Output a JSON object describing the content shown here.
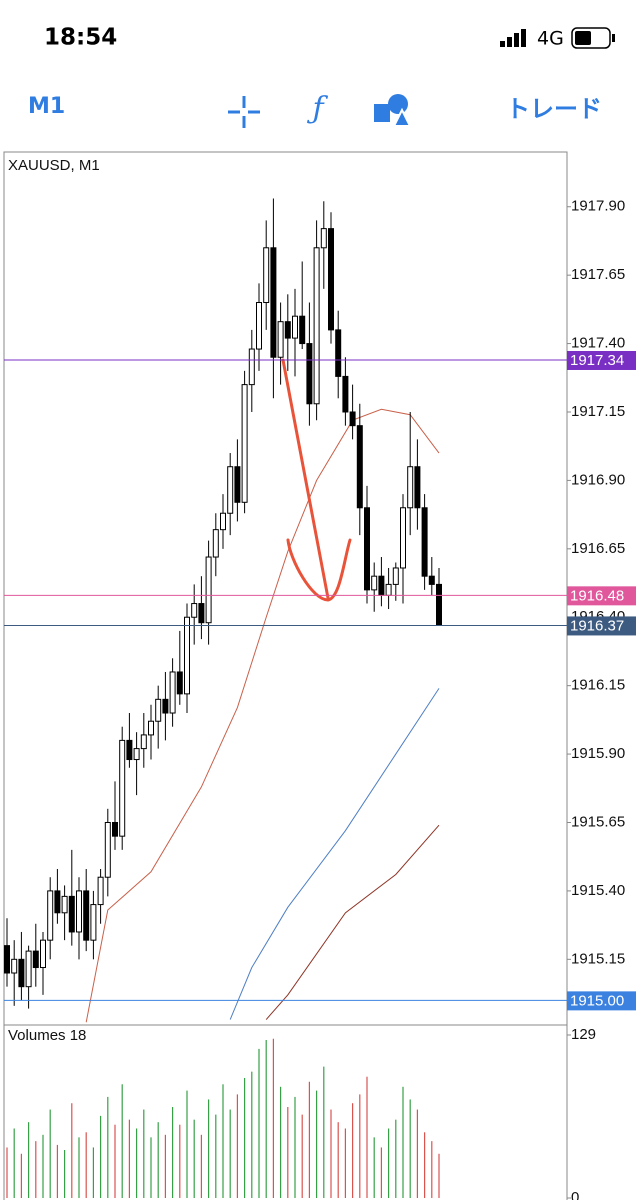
{
  "status_bar": {
    "time": "18:54",
    "network": "4G"
  },
  "toolbar": {
    "timeframe": "M1",
    "trade": "トレード"
  },
  "chart_data": {
    "type": "candlestick",
    "title": "XAUUSD, M1",
    "open": [
      1915.2,
      1915.1,
      1915.15,
      1915.05,
      1915.18,
      1915.12,
      1915.22,
      1915.4,
      1915.32,
      1915.38,
      1915.25,
      1915.4,
      1915.22,
      1915.35,
      1915.45,
      1915.65,
      1915.6,
      1915.95,
      1915.88,
      1915.92,
      1915.97,
      1916.02,
      1916.1,
      1916.05,
      1916.2,
      1916.12,
      1916.4,
      1916.45,
      1916.38,
      1916.62,
      1916.72,
      1916.78,
      1916.95,
      1916.82,
      1917.25,
      1917.38,
      1917.55,
      1917.75,
      1917.35,
      1917.48,
      1917.42,
      1917.5,
      1917.4,
      1917.18,
      1917.75,
      1917.82,
      1917.45,
      1917.28,
      1917.15,
      1917.1,
      1916.8,
      1916.5,
      1916.55,
      1916.48,
      1916.52,
      1916.58,
      1916.8,
      1916.95,
      1916.8,
      1916.55,
      1916.52
    ],
    "high": [
      1915.3,
      1915.22,
      1915.25,
      1915.2,
      1915.28,
      1915.25,
      1915.45,
      1915.48,
      1915.42,
      1915.55,
      1915.45,
      1915.48,
      1915.4,
      1915.48,
      1915.7,
      1915.8,
      1916.0,
      1916.05,
      1915.98,
      1916.05,
      1916.08,
      1916.15,
      1916.2,
      1916.25,
      1916.35,
      1916.45,
      1916.52,
      1916.55,
      1916.68,
      1916.78,
      1916.85,
      1917.0,
      1917.05,
      1917.3,
      1917.45,
      1917.62,
      1917.85,
      1917.93,
      1917.55,
      1917.58,
      1917.6,
      1917.7,
      1917.55,
      1917.85,
      1917.92,
      1917.88,
      1917.52,
      1917.35,
      1917.25,
      1917.18,
      1916.88,
      1916.6,
      1916.62,
      1916.58,
      1916.6,
      1916.85,
      1917.15,
      1917.05,
      1916.85,
      1916.62,
      1916.58
    ],
    "low": [
      1915.05,
      1914.98,
      1915.0,
      1914.97,
      1915.05,
      1915.02,
      1915.15,
      1915.28,
      1915.22,
      1915.2,
      1915.15,
      1915.18,
      1915.15,
      1915.28,
      1915.38,
      1915.55,
      1915.55,
      1915.85,
      1915.75,
      1915.85,
      1915.88,
      1915.92,
      1915.95,
      1916.0,
      1916.08,
      1916.05,
      1916.3,
      1916.32,
      1916.3,
      1916.55,
      1916.65,
      1916.7,
      1916.75,
      1916.78,
      1917.15,
      1917.3,
      1917.45,
      1917.2,
      1917.25,
      1917.3,
      1917.28,
      1917.38,
      1917.1,
      1917.12,
      1917.6,
      1917.4,
      1917.2,
      1917.1,
      1917.05,
      1916.7,
      1916.45,
      1916.42,
      1916.44,
      1916.43,
      1916.46,
      1916.45,
      1916.7,
      1916.72,
      1916.5,
      1916.48,
      1916.37
    ],
    "close": [
      1915.1,
      1915.15,
      1915.05,
      1915.18,
      1915.12,
      1915.22,
      1915.4,
      1915.32,
      1915.38,
      1915.25,
      1915.4,
      1915.22,
      1915.35,
      1915.45,
      1915.65,
      1915.6,
      1915.95,
      1915.88,
      1915.92,
      1915.97,
      1916.02,
      1916.1,
      1916.05,
      1916.2,
      1916.12,
      1916.4,
      1916.45,
      1916.38,
      1916.62,
      1916.72,
      1916.78,
      1916.95,
      1916.82,
      1917.25,
      1917.38,
      1917.55,
      1917.75,
      1917.35,
      1917.48,
      1917.42,
      1917.5,
      1917.4,
      1917.18,
      1917.75,
      1917.82,
      1917.45,
      1917.28,
      1917.15,
      1917.1,
      1916.8,
      1916.5,
      1916.55,
      1916.48,
      1916.52,
      1916.58,
      1916.8,
      1916.95,
      1916.8,
      1916.55,
      1916.52,
      1916.37
    ],
    "ylim": [
      1914.91,
      1918.1
    ],
    "yticks": [
      {
        "value": 1917.9,
        "label": "1917.90"
      },
      1917.65,
      {
        "value": 1917.4,
        "label": "1917.40"
      },
      1917.15,
      {
        "value": 1916.9,
        "label": "1916.90"
      },
      1916.65,
      {
        "value": 1916.4,
        "label": "1916.40"
      },
      1916.15,
      {
        "value": 1915.9,
        "label": "1915.90"
      },
      1915.65,
      {
        "value": 1915.4,
        "label": "1915.40"
      },
      1915.15
    ],
    "price_lines": [
      {
        "price": 1917.34,
        "color": "#7a2fc4"
      },
      {
        "price": 1916.48,
        "color": "#e0579c"
      },
      {
        "price": 1916.37,
        "color": "#3d5a80"
      },
      {
        "price": {
          "value": 1915,
          "label": "1915.00"
        },
        "color": "#3b82e0"
      }
    ],
    "moving_averages": [
      {
        "color": "#c9604a",
        "x": [
          11,
          14,
          20,
          27,
          32,
          36,
          39,
          43,
          48,
          52,
          56,
          60
        ],
        "values": [
          1914.92,
          1915.33,
          1915.47,
          1915.78,
          1916.07,
          1916.4,
          1916.64,
          1916.9,
          1917.12,
          1917.16,
          1917.14,
          1917.0
        ]
      },
      {
        "color": "#4f7fc4",
        "x": [
          31,
          34,
          39,
          47,
          54,
          60
        ],
        "values": [
          1914.93,
          1915.12,
          1915.34,
          1915.62,
          1915.9,
          1916.14
        ]
      },
      {
        "color": "#8e3426",
        "x": [
          36,
          39,
          47,
          54,
          60
        ],
        "values": [
          1914.93,
          1915.02,
          1915.32,
          1915.46,
          1915.64
        ]
      }
    ],
    "volume": {
      "title": "Volumes 18",
      "ylim": [
        0,
        129
      ],
      "yticks": [
        129,
        0
      ],
      "up_color": "#37a047",
      "down_color": "#d9534f",
      "values": [
        40,
        55,
        35,
        60,
        45,
        50,
        70,
        42,
        38,
        75,
        48,
        52,
        40,
        65,
        80,
        58,
        90,
        62,
        55,
        70,
        48,
        60,
        50,
        72,
        58,
        85,
        62,
        50,
        78,
        66,
        90,
        70,
        82,
        95,
        100,
        118,
        125,
        126,
        88,
        72,
        80,
        66,
        92,
        85,
        104,
        70,
        60,
        55,
        75,
        82,
        96,
        48,
        40,
        55,
        62,
        88,
        78,
        70,
        52,
        45,
        35
      ]
    }
  }
}
